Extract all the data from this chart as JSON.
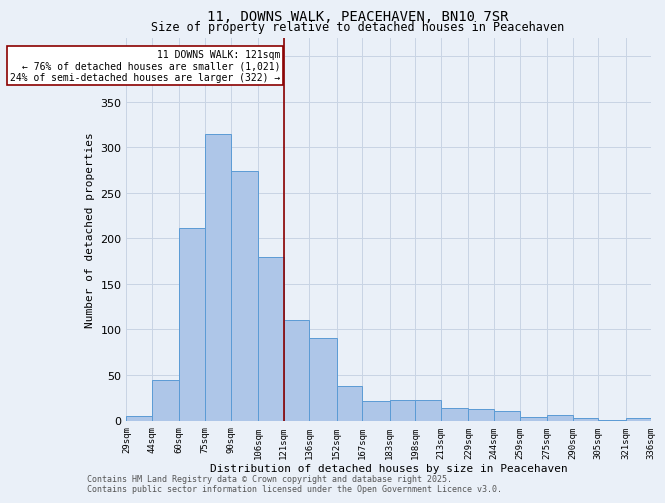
{
  "title_line1": "11, DOWNS WALK, PEACEHAVEN, BN10 7SR",
  "title_line2": "Size of property relative to detached houses in Peacehaven",
  "xlabel": "Distribution of detached houses by size in Peacehaven",
  "ylabel": "Number of detached properties",
  "footer_line1": "Contains HM Land Registry data © Crown copyright and database right 2025.",
  "footer_line2": "Contains public sector information licensed under the Open Government Licence v3.0.",
  "annotation_line1": "11 DOWNS WALK: 121sqm",
  "annotation_line2": "← 76% of detached houses are smaller (1,021)",
  "annotation_line3": "24% of semi-detached houses are larger (322) →",
  "property_size": 121,
  "bin_edges": [
    29,
    44,
    60,
    75,
    90,
    106,
    121,
    136,
    152,
    167,
    183,
    198,
    213,
    229,
    244,
    259,
    275,
    290,
    305,
    321,
    336
  ],
  "bar_heights": [
    5,
    44,
    211,
    315,
    274,
    180,
    110,
    91,
    38,
    21,
    22,
    23,
    14,
    13,
    10,
    4,
    6,
    3,
    1,
    3
  ],
  "bar_color": "#aec6e8",
  "bar_edge_color": "#5b9bd5",
  "vline_color": "#8b0000",
  "vline_x": 121,
  "annotation_box_color": "#8b0000",
  "background_color": "#eaf0f8",
  "grid_color": "#c8d4e4",
  "ylim": [
    0,
    420
  ],
  "yticks": [
    0,
    50,
    100,
    150,
    200,
    250,
    300,
    350,
    400
  ],
  "title1_fontsize": 10,
  "title2_fontsize": 8.5,
  "footer_fontsize": 6,
  "ylabel_fontsize": 8,
  "xlabel_fontsize": 8,
  "ytick_fontsize": 8,
  "xtick_fontsize": 6.5,
  "annot_fontsize": 7
}
